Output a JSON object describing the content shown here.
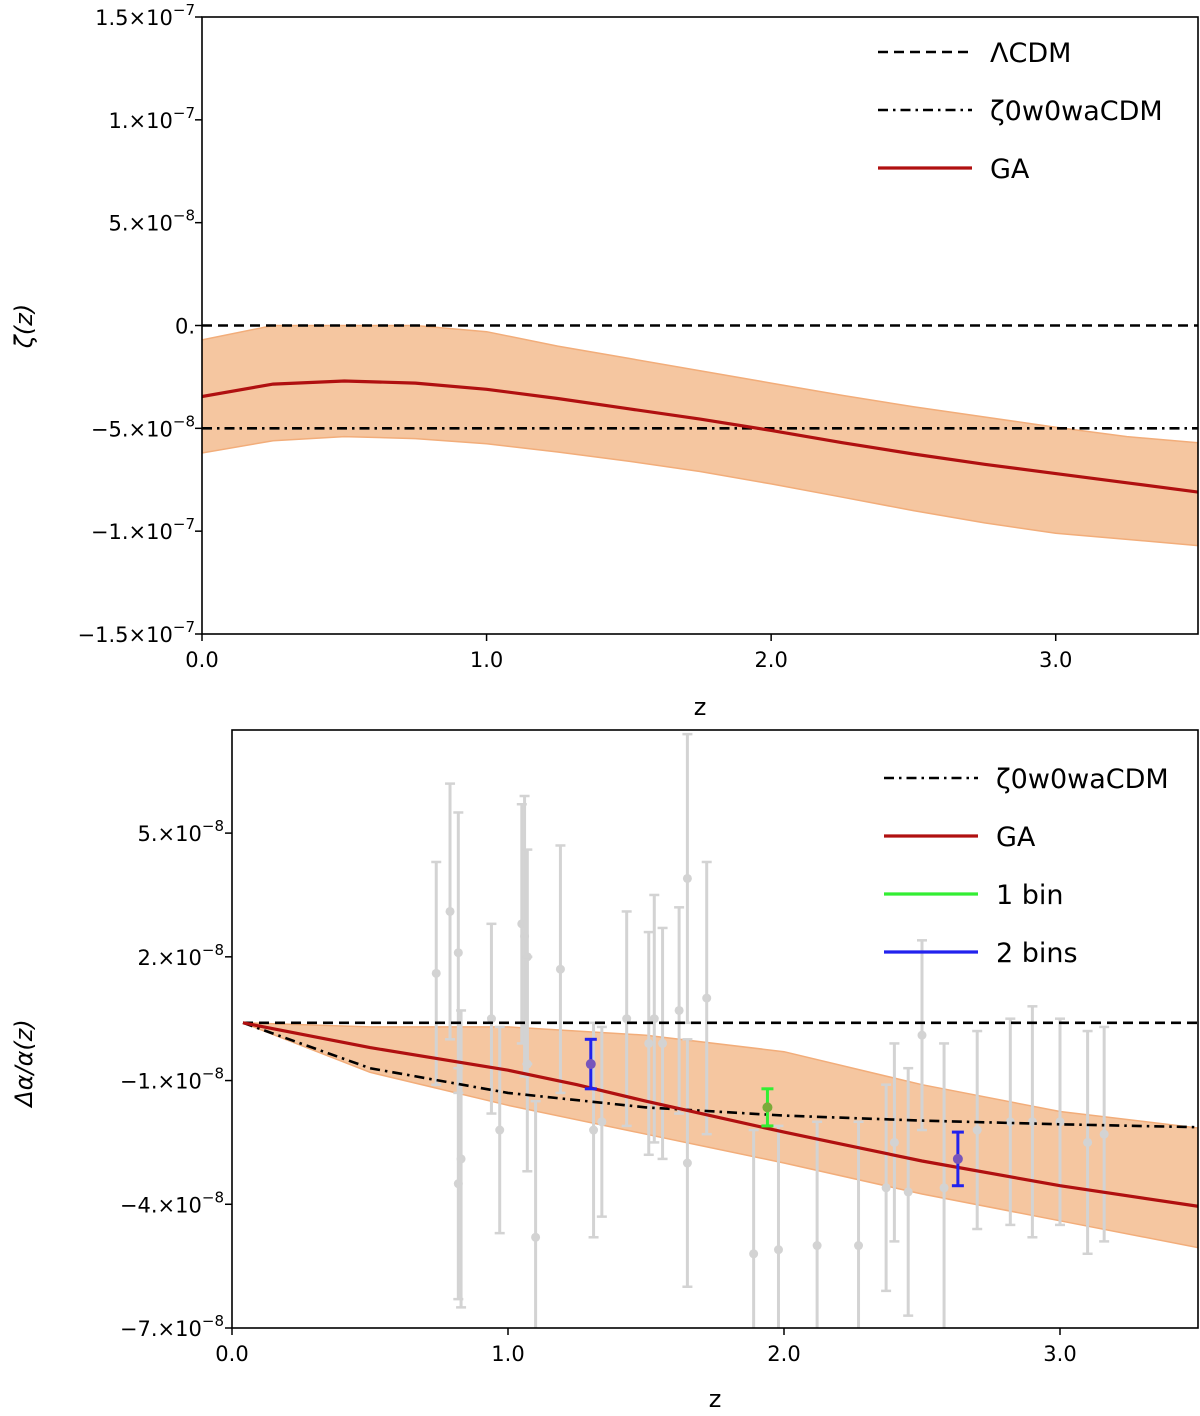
{
  "chart_data": [
    {
      "type": "line",
      "xlabel": "z",
      "ylabel": "ζ(z)",
      "xlim": [
        0.0,
        3.5
      ],
      "ylim": [
        -1.5e-07,
        1.5e-07
      ],
      "xticks": [
        {
          "value": 0.0,
          "label": "0.0"
        },
        {
          "value": 1.0,
          "label": "1.0"
        },
        {
          "value": 2.0,
          "label": "2.0"
        },
        {
          "value": 3.0,
          "label": "3.0"
        }
      ],
      "yticks": [
        {
          "value": 1.5e-07,
          "mant": "1.5",
          "exp": "−7"
        },
        {
          "value": 1e-07,
          "mant": "1.",
          "exp": "−7"
        },
        {
          "value": 5e-08,
          "mant": "5.",
          "exp": "−8"
        },
        {
          "value": 0,
          "mant": "0.",
          "exp": ""
        },
        {
          "value": -5e-08,
          "mant": "−5.",
          "exp": "−8"
        },
        {
          "value": -1e-07,
          "mant": "−1.",
          "exp": "−7"
        },
        {
          "value": -1.5e-07,
          "mant": "−1.5",
          "exp": "−7"
        }
      ],
      "series": [
        {
          "name": "ΛCDM",
          "style": "dashed",
          "color": "#000000",
          "x": [
            0,
            3.5
          ],
          "y": [
            0,
            0
          ]
        },
        {
          "name": "ζ0w0waCDM",
          "style": "dashdot",
          "color": "#000000",
          "x": [
            0,
            3.5
          ],
          "y": [
            -5e-08,
            -5e-08
          ]
        },
        {
          "name": "GA",
          "style": "solid",
          "color": "#b01010",
          "x": [
            0,
            0.25,
            0.5,
            0.75,
            1.0,
            1.25,
            1.5,
            1.75,
            2.0,
            2.25,
            2.5,
            2.75,
            3.0,
            3.25,
            3.5
          ],
          "y": [
            -3.45e-08,
            -2.85e-08,
            -2.7e-08,
            -2.8e-08,
            -3.1e-08,
            -3.55e-08,
            -4.05e-08,
            -4.55e-08,
            -5.1e-08,
            -5.7e-08,
            -6.25e-08,
            -6.75e-08,
            -7.2e-08,
            -7.65e-08,
            -8.1e-08
          ]
        }
      ],
      "band": {
        "color": "#f5c6a0",
        "edge": "#f2ad7a",
        "x": [
          0,
          0.25,
          0.5,
          0.75,
          1.0,
          1.25,
          1.5,
          1.75,
          2.0,
          2.25,
          2.5,
          2.75,
          3.0,
          3.25,
          3.5
        ],
        "upper": [
          -7e-09,
          0,
          0,
          0,
          -3e-09,
          -1e-08,
          -1.6e-08,
          -2.2e-08,
          -2.8e-08,
          -3.4e-08,
          -3.95e-08,
          -4.45e-08,
          -4.95e-08,
          -5.4e-08,
          -5.7e-08
        ],
        "lower": [
          -6.2e-08,
          -5.6e-08,
          -5.4e-08,
          -5.5e-08,
          -5.75e-08,
          -6.15e-08,
          -6.6e-08,
          -7.1e-08,
          -7.7e-08,
          -8.35e-08,
          -9e-08,
          -9.6e-08,
          -1.01e-07,
          -1.04e-07,
          -1.07e-07
        ]
      },
      "legend": {
        "placement": "top-right",
        "items": [
          {
            "label": "ΛCDM",
            "style": "dashed",
            "color": "#000000"
          },
          {
            "label": "ζ0w0waCDM",
            "style": "dashdot",
            "color": "#000000"
          },
          {
            "label": "GA",
            "style": "solid",
            "color": "#b01010"
          }
        ]
      }
    },
    {
      "type": "line",
      "xlabel": "z",
      "ylabel": "Δα/α(z)",
      "xlim": [
        0.0,
        3.5
      ],
      "ylim": [
        -7e-08,
        7.5e-08
      ],
      "xticks": [
        {
          "value": 0.0,
          "label": "0.0"
        },
        {
          "value": 1.0,
          "label": "1.0"
        },
        {
          "value": 2.0,
          "label": "2.0"
        },
        {
          "value": 3.0,
          "label": "3.0"
        }
      ],
      "yticks": [
        {
          "value": 5e-08,
          "mant": "5.",
          "exp": "−8"
        },
        {
          "value": 2e-08,
          "mant": "2.",
          "exp": "−8"
        },
        {
          "value": -1e-08,
          "mant": "−1.",
          "exp": "−8"
        },
        {
          "value": -4e-08,
          "mant": "−4.",
          "exp": "−8"
        },
        {
          "value": -7e-08,
          "mant": "−7.",
          "exp": "−8"
        }
      ],
      "series": [
        {
          "name": "ΛCDM",
          "style": "dashed",
          "color": "#000000",
          "x": [
            0.04,
            3.5
          ],
          "y": [
            4e-09,
            4e-09
          ]
        },
        {
          "name": "ζ0w0waCDM",
          "style": "dashdot",
          "color": "#000000",
          "x": [
            0.04,
            0.5,
            1.0,
            1.5,
            2.0,
            2.5,
            3.0,
            3.5
          ],
          "y": [
            4e-09,
            -7e-09,
            -1.3e-08,
            -1.65e-08,
            -1.85e-08,
            -1.97e-08,
            -2.06e-08,
            -2.13e-08
          ]
        },
        {
          "name": "GA",
          "style": "solid",
          "color": "#b01010",
          "x": [
            0.04,
            0.5,
            1.0,
            1.25,
            1.5,
            2.0,
            2.5,
            3.0,
            3.5
          ],
          "y": [
            4e-09,
            -2e-09,
            -7.5e-09,
            -1.1e-08,
            -1.5e-08,
            -2.25e-08,
            -2.95e-08,
            -3.55e-08,
            -4.05e-08
          ]
        }
      ],
      "band": {
        "color": "#f5c6a0",
        "edge": "#f2ad7a",
        "x": [
          0.04,
          0.5,
          1.0,
          1.5,
          2.0,
          2.5,
          3.0,
          3.5
        ],
        "upper": [
          4e-09,
          3e-09,
          3e-09,
          1e-09,
          -3e-09,
          -1.1e-08,
          -1.75e-08,
          -2.15e-08
        ],
        "lower": [
          4e-09,
          -8e-09,
          -1.6e-08,
          -2.3e-08,
          -3e-08,
          -3.75e-08,
          -4.4e-08,
          -5.05e-08
        ]
      },
      "data_points": {
        "color": "#d3d3d3",
        "points": [
          {
            "z": 0.74,
            "y": 1.6e-08,
            "err": 2.7e-08
          },
          {
            "z": 0.79,
            "y": 3.1e-08,
            "err": 3.1e-08
          },
          {
            "z": 0.82,
            "y": 2.1e-08,
            "err": 3.4e-08
          },
          {
            "z": 0.82,
            "y": -3.5e-08,
            "err": 2.8e-08
          },
          {
            "z": 0.83,
            "y": -2.9e-08,
            "err": 3.6e-08
          },
          {
            "z": 0.94,
            "y": 5e-09,
            "err": 2.3e-08
          },
          {
            "z": 0.97,
            "y": -2.2e-08,
            "err": 2.5e-08
          },
          {
            "z": 1.05,
            "y": 2.8e-08,
            "err": 2.9e-08
          },
          {
            "z": 1.06,
            "y": 2.5e-08,
            "err": 3.4e-08
          },
          {
            "z": 1.07,
            "y": 2e-08,
            "err": 2.6e-08
          },
          {
            "z": 1.07,
            "y": -6e-09,
            "err": 2.6e-08
          },
          {
            "z": 1.1,
            "y": -4.8e-08,
            "err": 3.3e-08
          },
          {
            "z": 1.19,
            "y": 1.7e-08,
            "err": 3e-08
          },
          {
            "z": 1.31,
            "y": -2.2e-08,
            "err": 2.6e-08
          },
          {
            "z": 1.34,
            "y": -2e-08,
            "err": 2.3e-08
          },
          {
            "z": 1.43,
            "y": 5e-09,
            "err": 2.6e-08
          },
          {
            "z": 1.51,
            "y": -1e-09,
            "err": 2.7e-08
          },
          {
            "z": 1.53,
            "y": 5e-09,
            "err": 3e-08
          },
          {
            "z": 1.56,
            "y": -1e-09,
            "err": 2.8e-08
          },
          {
            "z": 1.62,
            "y": 7e-09,
            "err": 2.5e-08
          },
          {
            "z": 1.65,
            "y": -3e-08,
            "err": 3e-08
          },
          {
            "z": 1.65,
            "y": 3.9e-08,
            "err": 3.5e-08
          },
          {
            "z": 1.72,
            "y": 1e-08,
            "err": 3.3e-08
          },
          {
            "z": 1.89,
            "y": -5.2e-08,
            "err": 3e-08
          },
          {
            "z": 1.98,
            "y": -5.1e-08,
            "err": 3e-08
          },
          {
            "z": 2.12,
            "y": -5e-08,
            "err": 3e-08
          },
          {
            "z": 2.27,
            "y": -5e-08,
            "err": 3e-08
          },
          {
            "z": 2.37,
            "y": -3.6e-08,
            "err": 2.5e-08
          },
          {
            "z": 2.4,
            "y": -2.5e-08,
            "err": 2.4e-08
          },
          {
            "z": 2.45,
            "y": -3.7e-08,
            "err": 3e-08
          },
          {
            "z": 2.5,
            "y": 1e-09,
            "err": 2.3e-08
          },
          {
            "z": 2.58,
            "y": -3.6e-08,
            "err": 3.5e-08
          },
          {
            "z": 2.7,
            "y": -2.2e-08,
            "err": 2.4e-08
          },
          {
            "z": 2.82,
            "y": -2e-08,
            "err": 2.5e-08
          },
          {
            "z": 2.9,
            "y": -2e-08,
            "err": 2.8e-08
          },
          {
            "z": 3.0,
            "y": -2e-08,
            "err": 2.5e-08
          },
          {
            "z": 3.1,
            "y": -2.5e-08,
            "err": 2.7e-08
          },
          {
            "z": 3.16,
            "y": -2.3e-08,
            "err": 2.6e-08
          }
        ]
      },
      "bins": [
        {
          "name": "1 bin",
          "color": "#33ee33",
          "z": 1.94,
          "y": -1.65e-08,
          "err": 4.5e-09,
          "marker": "#7aaa3a"
        },
        {
          "name": "2 bins",
          "color": "#2222ee",
          "z": 1.3,
          "y": -6e-09,
          "err": 6e-09,
          "marker": "#7755bb"
        },
        {
          "name": "2 bins",
          "color": "#2222ee",
          "z": 2.63,
          "y": -2.9e-08,
          "err": 6.5e-09,
          "marker": "#7755bb"
        }
      ],
      "legend": {
        "placement": "top-right",
        "items": [
          {
            "label": "ζ0w0waCDM",
            "style": "dashdot",
            "color": "#000000"
          },
          {
            "label": "GA",
            "style": "solid",
            "color": "#b01010"
          },
          {
            "label": "1 bin",
            "style": "solid",
            "color": "#33ee33"
          },
          {
            "label": "2 bins",
            "style": "solid",
            "color": "#2222ee"
          }
        ]
      }
    }
  ]
}
